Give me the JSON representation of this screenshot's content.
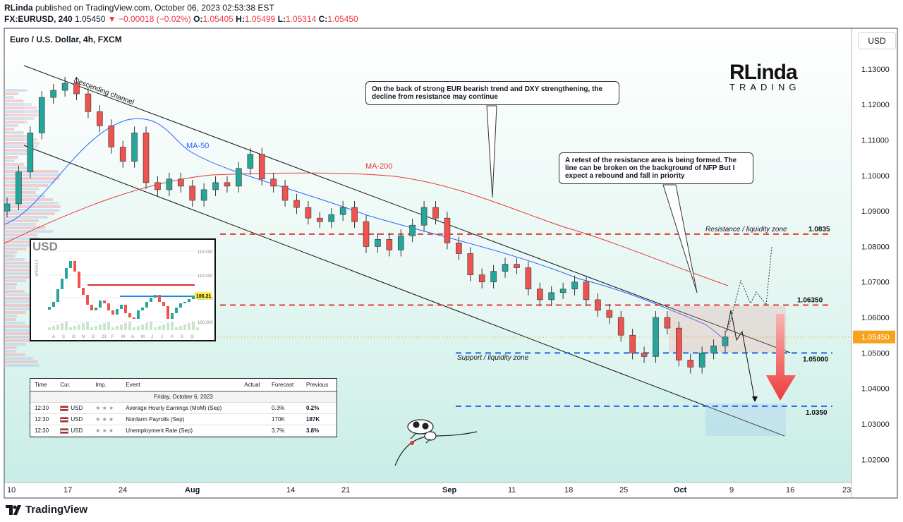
{
  "header": {
    "publisher": "RLinda",
    "published_text": "published on TradingView.com, October 06, 2023 02:53:38 EST",
    "symbol": "FX:EURUSD, 240",
    "last": "1.05450",
    "change": "▼ −0.00018 (−0.02%)",
    "o_label": "O:",
    "o": "1.05405",
    "h_label": "H:",
    "h": "1.05499",
    "l_label": "L:",
    "l": "1.05314",
    "c_label": "C:",
    "c": "1.05450"
  },
  "currency_button": "USD",
  "brand": "TradingView",
  "logo": {
    "main": "RLinda",
    "sub": "TRADING"
  },
  "notes": {
    "note1": "On the back of strong EUR bearish trend and DXY strengthening, the decline from resistance may continue",
    "note2": "A retest of the resistance area is being formed. The line can be broken on the background of NFP But I expect a rebound and fall in priority"
  },
  "inset": {
    "title": "USD",
    "yaxis_label": "WEEKLY",
    "ticks_y": [
      "115.000",
      "110.000",
      "105.000",
      "100.000"
    ],
    "ticks_x": [
      "A",
      "S",
      "O",
      "N",
      "D",
      "23",
      "F",
      "M",
      "A",
      "M",
      "J",
      "J",
      "A",
      "S",
      "O"
    ],
    "price_tag": "106.21"
  },
  "events": {
    "headers": [
      "Time",
      "Cur.",
      "Imp.",
      "Event",
      "Actual",
      "Forecast",
      "Previous"
    ],
    "day": "Friday, October 6, 2023",
    "rows": [
      {
        "time": "12:30",
        "cur": "USD",
        "imp": "★ ★ ★",
        "event": "Average Hourly Earnings (MoM) (Sep)",
        "actual": "",
        "forecast": "0.3%",
        "previous": "0.2%"
      },
      {
        "time": "12:30",
        "cur": "USD",
        "imp": "★ ★ ★",
        "event": "Nonfarm Payrolls (Sep)",
        "actual": "",
        "forecast": "170K",
        "previous": "187K"
      },
      {
        "time": "12:30",
        "cur": "USD",
        "imp": "★ ★ ★",
        "event": "Unemployment Rate (Sep)",
        "actual": "",
        "forecast": "3.7%",
        "previous": "3.8%"
      }
    ]
  },
  "chart_data": {
    "type": "candlestick",
    "title": "Euro / U.S. Dollar, 4h, FXCM",
    "y_ticks": [
      "1.13000",
      "1.12000",
      "1.11000",
      "1.10000",
      "1.09000",
      "1.08000",
      "1.07000",
      "1.06000",
      "1.05000",
      "1.04000",
      "1.03000",
      "1.02000"
    ],
    "ylim": [
      1.0135,
      1.1415
    ],
    "x_ticks": [
      "10",
      "17",
      "24",
      "Aug",
      "14",
      "21",
      "Sep",
      "11",
      "18",
      "25",
      "Oct",
      "9",
      "16",
      "23"
    ],
    "last_price_label": "1.05450",
    "levels": [
      {
        "value": 1.0835,
        "label": "1.0835",
        "color": "#e53935",
        "name": "Resistance / liquidity zone"
      },
      {
        "value": 1.0635,
        "label": "1.06350",
        "color": "#e53935"
      },
      {
        "value": 1.05,
        "label": "1.05000",
        "color": "#1e63e9",
        "name": "Support / liquidity zone"
      },
      {
        "value": 1.035,
        "label": "1.0350",
        "color": "#1e63e9"
      }
    ],
    "annotations": [
      "Descending channel",
      "MA-50",
      "MA-200",
      "Resistance / liquidity zone",
      "Support / liquidity zone"
    ],
    "closes": [
      1.092,
      1.101,
      1.112,
      1.122,
      1.124,
      1.126,
      1.123,
      1.118,
      1.114,
      1.108,
      1.104,
      1.112,
      1.098,
      1.096,
      1.099,
      1.097,
      1.093,
      1.096,
      1.098,
      1.097,
      1.102,
      1.106,
      1.099,
      1.097,
      1.093,
      1.091,
      1.088,
      1.087,
      1.089,
      1.091,
      1.087,
      1.08,
      1.082,
      1.079,
      1.083,
      1.086,
      1.091,
      1.088,
      1.081,
      1.078,
      1.072,
      1.07,
      1.073,
      1.075,
      1.074,
      1.068,
      1.065,
      1.067,
      1.068,
      1.07,
      1.065,
      1.062,
      1.06,
      1.055,
      1.05,
      1.049,
      1.06,
      1.057,
      1.048,
      1.046,
      1.05,
      1.052,
      1.0545
    ]
  }
}
